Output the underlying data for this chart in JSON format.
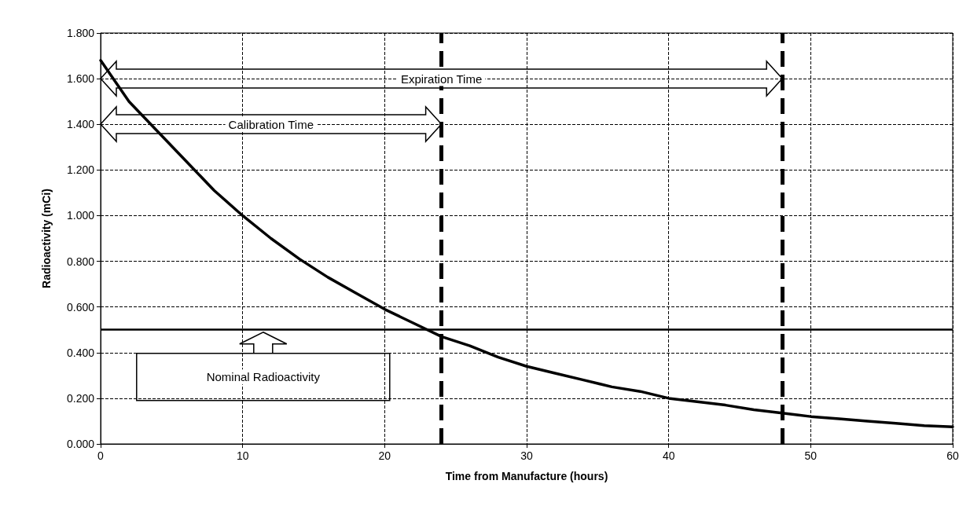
{
  "chart_data": {
    "type": "line",
    "xlabel": "Time from Manufacture (hours)",
    "ylabel": "Radioactivity (mCi)",
    "x": [
      0,
      2,
      4,
      6,
      8,
      10,
      12,
      14,
      16,
      18,
      20,
      22,
      24,
      26,
      28,
      30,
      32,
      34,
      36,
      38,
      40,
      42,
      44,
      46,
      48,
      50,
      52,
      54,
      56,
      58,
      60
    ],
    "series": [
      {
        "color": "#000000",
        "values": [
          1.68,
          1.5,
          1.37,
          1.24,
          1.11,
          1.0,
          0.9,
          0.81,
          0.73,
          0.66,
          0.59,
          0.53,
          0.47,
          0.43,
          0.38,
          0.34,
          0.31,
          0.28,
          0.25,
          0.23,
          0.2,
          0.185,
          0.17,
          0.15,
          0.135,
          0.12,
          0.11,
          0.1,
          0.09,
          0.08,
          0.075
        ]
      }
    ],
    "xlim": [
      0,
      60
    ],
    "xticks": [
      0,
      10,
      20,
      30,
      40,
      50,
      60
    ],
    "ylim": [
      0,
      1.8
    ],
    "yticks": [
      {
        "value": 0,
        "label": "0.000"
      },
      {
        "value": 0.2,
        "label": "0.200"
      },
      {
        "value": 0.4,
        "label": "0.400"
      },
      {
        "value": 0.6,
        "label": "0.600"
      },
      {
        "value": 0.8,
        "label": "0.800"
      },
      {
        "value": 1.0,
        "label": "1.000"
      },
      {
        "value": 1.2,
        "label": "1.200"
      },
      {
        "value": 1.4,
        "label": "1.400"
      },
      {
        "value": 1.6,
        "label": "1.600"
      },
      {
        "value": 1.8,
        "label": "1.800"
      }
    ],
    "grid": true,
    "marker": "none",
    "line_style": "solid",
    "ref_lines": [
      {
        "axis": "y",
        "value": 0.5,
        "color": "#000000",
        "line_style": "solid"
      },
      {
        "axis": "x",
        "value": 24,
        "color": "#000000",
        "line_style": "dashed"
      },
      {
        "axis": "x",
        "value": 48,
        "color": "#000000",
        "line_style": "dashed"
      }
    ],
    "annotations": [
      "Expiration Time",
      "Calibration Time",
      "Nominal Radioactivity"
    ]
  }
}
